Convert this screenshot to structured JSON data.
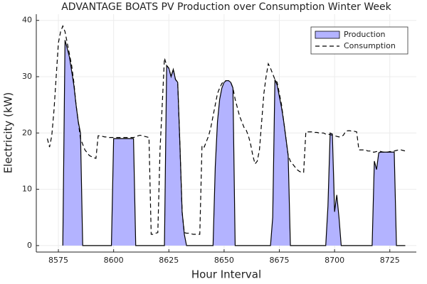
{
  "chart_data": {
    "type": "area-line",
    "title": "ADVANTAGE BOATS PV Production over Consumption Winter Week",
    "x_label": "Hour Interval",
    "y_label": "Electricity (kW)",
    "xlim": [
      8565,
      8737
    ],
    "ylim": [
      -1.15,
      41.1
    ],
    "xticks": [
      8575,
      8600,
      8625,
      8650,
      8675,
      8700,
      8725
    ],
    "yticks": [
      0,
      10,
      20,
      30,
      40
    ],
    "grid": true,
    "legend": "top-right",
    "x": [
      8570,
      8571,
      8572,
      8573,
      8574,
      8575,
      8576,
      8577,
      8578,
      8579,
      8580,
      8581,
      8582,
      8583,
      8584,
      8585,
      8586,
      8587,
      8588,
      8589,
      8590,
      8591,
      8592,
      8593,
      8594,
      8595,
      8596,
      8597,
      8598,
      8599,
      8600,
      8601,
      8602,
      8603,
      8604,
      8605,
      8606,
      8607,
      8608,
      8609,
      8610,
      8611,
      8612,
      8613,
      8614,
      8615,
      8616,
      8617,
      8618,
      8619,
      8620,
      8621,
      8622,
      8623,
      8624,
      8625,
      8626,
      8627,
      8628,
      8629,
      8630,
      8631,
      8632,
      8633,
      8634,
      8635,
      8636,
      8637,
      8638,
      8639,
      8640,
      8641,
      8642,
      8643,
      8644,
      8645,
      8646,
      8647,
      8648,
      8649,
      8650,
      8651,
      8652,
      8653,
      8654,
      8655,
      8656,
      8657,
      8658,
      8659,
      8660,
      8661,
      8662,
      8663,
      8664,
      8665,
      8666,
      8667,
      8668,
      8669,
      8670,
      8671,
      8672,
      8673,
      8674,
      8675,
      8676,
      8677,
      8678,
      8679,
      8680,
      8681,
      8682,
      8683,
      8684,
      8685,
      8686,
      8687,
      8688,
      8689,
      8690,
      8691,
      8692,
      8693,
      8694,
      8695,
      8696,
      8697,
      8698,
      8699,
      8700,
      8701,
      8702,
      8703,
      8704,
      8705,
      8706,
      8707,
      8708,
      8709,
      8710,
      8711,
      8712,
      8713,
      8714,
      8715,
      8716,
      8717,
      8718,
      8719,
      8720,
      8721,
      8722,
      8723,
      8724,
      8725,
      8726,
      8727,
      8728,
      8729,
      8730,
      8731,
      8732
    ],
    "series": [
      {
        "name": "Production",
        "color": "#b3b3ff",
        "style": "area",
        "values": [
          null,
          null,
          null,
          null,
          null,
          null,
          null,
          0,
          36.5,
          35,
          33.5,
          31,
          28.5,
          25,
          22,
          20,
          0,
          0,
          0,
          0,
          0,
          0,
          0,
          0,
          0,
          0,
          0,
          0,
          0,
          0,
          19,
          19,
          19,
          19,
          19,
          19,
          19,
          19,
          19,
          19,
          0,
          0,
          0,
          0,
          0,
          0,
          0,
          0,
          0,
          0,
          0,
          0,
          0,
          0,
          32,
          31.5,
          30,
          31.3,
          29.5,
          29,
          18,
          6,
          2,
          0,
          0,
          0,
          0,
          0,
          0,
          0,
          0,
          0,
          0,
          0,
          0,
          0,
          14,
          22,
          26,
          28,
          29,
          29.3,
          29.3,
          29,
          28,
          0,
          0,
          0,
          0,
          0,
          0,
          0,
          0,
          0,
          0,
          0,
          0,
          0,
          0,
          0,
          0,
          0,
          5,
          29.5,
          28.5,
          26.5,
          24.5,
          22,
          19,
          16,
          0,
          0,
          0,
          0,
          0,
          0,
          0,
          0,
          0,
          0,
          0,
          0,
          0,
          0,
          0,
          0,
          0,
          7,
          20,
          19.8,
          6,
          9,
          5,
          0,
          0,
          0,
          0,
          0,
          0,
          0,
          0,
          0,
          0,
          0,
          0,
          0,
          0,
          0,
          15,
          13.5,
          16.5,
          16.6,
          16.6,
          16.6,
          16.6,
          16.6,
          16.6,
          16.6,
          0,
          0,
          0,
          0,
          0
        ]
      },
      {
        "name": "Consumption",
        "color": "#000000",
        "style": "dashed",
        "values": [
          19,
          17.5,
          19.5,
          24,
          30,
          36,
          38,
          39,
          38,
          36,
          34,
          32,
          29,
          25,
          22,
          19,
          18,
          17,
          16.5,
          16,
          15.8,
          15.6,
          15.5,
          19.5,
          19.5,
          19.4,
          19.3,
          19.3,
          19.2,
          19.2,
          19.2,
          19.2,
          19.2,
          19.2,
          19.2,
          19.2,
          19.2,
          19.2,
          19.2,
          19.2,
          19.3,
          19.5,
          19.6,
          19.5,
          19.4,
          19.3,
          19.2,
          2,
          2,
          2.2,
          2.3,
          17,
          25,
          33.3,
          32,
          31.5,
          30,
          31.3,
          29.5,
          29,
          18,
          6,
          2.3,
          2.2,
          2.2,
          2.1,
          2,
          2,
          2,
          2,
          17.8,
          17.5,
          18.5,
          19.5,
          21,
          23,
          25,
          27,
          28,
          28.8,
          29.2,
          29.3,
          29.3,
          29,
          28,
          26,
          24.5,
          23,
          22,
          21,
          20.5,
          19.5,
          18,
          16,
          14.5,
          15,
          17,
          22,
          27,
          30,
          32.3,
          31.5,
          30.5,
          29.5,
          29,
          27,
          25,
          22,
          19,
          16,
          15,
          14.5,
          14,
          13.5,
          13.2,
          13,
          13,
          20.2,
          20.2,
          20.2,
          20.2,
          20.1,
          20.1,
          20,
          20,
          20,
          19.8,
          19.8,
          19.7,
          19.6,
          19.5,
          19.4,
          19.3,
          19.4,
          19.6,
          20.3,
          20.4,
          20.4,
          20.3,
          20.3,
          20.2,
          17,
          17,
          17,
          17,
          16.8,
          16.8,
          16.6,
          16.6,
          16.7,
          16.8,
          16.7,
          16.6,
          16.6,
          16.6,
          16.7,
          16.7,
          16.8,
          16.9,
          17,
          17,
          16.9,
          16.8
        ]
      }
    ]
  }
}
